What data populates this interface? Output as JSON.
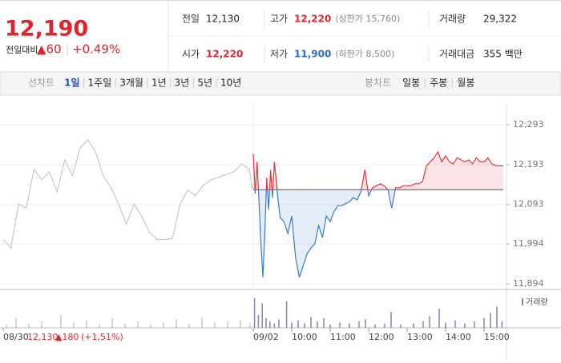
{
  "header": {
    "price": "12,190",
    "change_label": "전일대비",
    "change": "▲60",
    "change_rate": "+0.49%"
  },
  "info": [
    {
      "label": "전일",
      "value": "12,130"
    },
    {
      "label": "고가",
      "value": "12,220",
      "note": "(상한가 15,760)"
    },
    {
      "label": "거래량",
      "value": "29,322"
    },
    {
      "label": "시가",
      "value": "12,220"
    },
    {
      "label": "저가",
      "value": "11,900",
      "note": "(하한가 8,500)"
    },
    {
      "label": "거래대금",
      "value": "355 백만"
    }
  ],
  "tabs": {
    "line_chart": "선차트",
    "periods": [
      "1일",
      "1주일",
      "3개월",
      "1년",
      "3년",
      "5년",
      "10년"
    ],
    "candle_chart": "봉차트",
    "candles": [
      "일봉",
      "주봉",
      "월봉"
    ]
  },
  "chart_data": {
    "type": "line",
    "grid": true,
    "xlim": [
      -395,
      395
    ],
    "ylim": [
      11880,
      12320
    ],
    "baseline": 12130,
    "yticks": [
      {
        "value": 12293,
        "label": "12,293"
      },
      {
        "value": 12193,
        "label": "12,193"
      },
      {
        "value": 12093,
        "label": "12,093"
      },
      {
        "value": 11994,
        "label": "11,994"
      },
      {
        "value": 11894,
        "label": "11,894"
      }
    ],
    "xticks": [
      {
        "value": -390,
        "label": "08/30"
      },
      {
        "value": 0,
        "label": "09/02"
      },
      {
        "value": 60,
        "label": "10:00"
      },
      {
        "value": 120,
        "label": "11:00"
      },
      {
        "value": 180,
        "label": "12:00"
      },
      {
        "value": 240,
        "label": "13:00"
      },
      {
        "value": 300,
        "label": "14:00"
      },
      {
        "value": 360,
        "label": "15:00"
      }
    ],
    "series": [
      {
        "color": "#c8c8c8",
        "x": [
          -390,
          -378,
          -366,
          -354,
          -342,
          -330,
          -318,
          -306,
          -294,
          -282,
          -270,
          -258,
          -246,
          -234,
          -222,
          -210,
          -198,
          -186,
          -174,
          -162,
          -150,
          -138,
          -126,
          -114,
          -102,
          -90,
          -78,
          -66,
          -54,
          -42,
          -30,
          -18,
          -6,
          -1
        ],
        "values": [
          12005,
          11984,
          12094,
          12084,
          12181,
          12155,
          12175,
          12125,
          12205,
          12165,
          12235,
          12255,
          12225,
          12165,
          12135,
          12094,
          12044,
          12094,
          12064,
          12024,
          12005,
          12005,
          12008,
          12094,
          12129,
          12115,
          12141,
          12155,
          12161,
          12169,
          12175,
          12195,
          12181,
          12130
        ]
      },
      {
        "color": "#e8343c",
        "down_color": "#3a78d4",
        "x": [
          0,
          3,
          6,
          9,
          12,
          15,
          18,
          21,
          24,
          27,
          30,
          33,
          36,
          39,
          42,
          48,
          54,
          60,
          66,
          72,
          78,
          84,
          90,
          96,
          102,
          108,
          114,
          120,
          126,
          132,
          138,
          144,
          150,
          156,
          162,
          168,
          174,
          180,
          186,
          192,
          198,
          204,
          210,
          216,
          222,
          228,
          234,
          240,
          246,
          252,
          258,
          264,
          270,
          276,
          282,
          288,
          294,
          300,
          306,
          312,
          318,
          324,
          330,
          336,
          342,
          348,
          354,
          360,
          366,
          372,
          378,
          384,
          390
        ],
        "values": [
          12220,
          12120,
          12200,
          12100,
          11994,
          11910,
          12020,
          12160,
          12080,
          12180,
          12110,
          12200,
          12150,
          12100,
          12060,
          12050,
          12020,
          12064,
          11960,
          11910,
          11940,
          11970,
          11984,
          11994,
          12040,
          12010,
          12064,
          12050,
          12075,
          12090,
          12090,
          12095,
          12100,
          12110,
          12105,
          12125,
          12180,
          12115,
          12135,
          12140,
          12145,
          12140,
          12130,
          12084,
          12135,
          12135,
          12140,
          12140,
          12140,
          12145,
          12145,
          12150,
          12190,
          12200,
          12210,
          12225,
          12200,
          12215,
          12200,
          12195,
          12210,
          12205,
          12200,
          12205,
          12195,
          12210,
          12200,
          12200,
          12210,
          12195,
          12190,
          12190,
          12190
        ]
      }
    ],
    "annotation": {
      "price": "12,130",
      "change": "▲180",
      "rate": "(+1,51%)"
    },
    "volume": {
      "label": "거래량",
      "ylim": [
        0,
        3000
      ],
      "series": [
        {
          "color": "#c9c4dc",
          "x": [
            -385,
            -370,
            -350,
            -330,
            -300,
            -280,
            -260,
            -240,
            -220,
            -200,
            -180,
            -160,
            -140,
            -120,
            -100,
            -80,
            -60,
            -40,
            -20,
            -5
          ],
          "values": [
            300,
            900,
            400,
            600,
            1200,
            500,
            700,
            300,
            900,
            400,
            600,
            300,
            500,
            800,
            400,
            1000,
            500,
            600,
            700,
            400
          ]
        },
        {
          "color": "#8a7fc0",
          "x": [
            2,
            8,
            14,
            20,
            26,
            33,
            40,
            52,
            60,
            70,
            80,
            90,
            100,
            110,
            120,
            135,
            150,
            165,
            175,
            190,
            205,
            215,
            230,
            250,
            265,
            275,
            290,
            300,
            315,
            330,
            345,
            360,
            370,
            380,
            388
          ],
          "values": [
            2800,
            1200,
            2300,
            900,
            600,
            400,
            800,
            2500,
            500,
            700,
            400,
            1000,
            600,
            900,
            300,
            500,
            400,
            600,
            800,
            300,
            400,
            1500,
            300,
            400,
            600,
            1100,
            1800,
            500,
            700,
            400,
            600,
            900,
            1400,
            2000,
            600
          ]
        }
      ]
    }
  }
}
